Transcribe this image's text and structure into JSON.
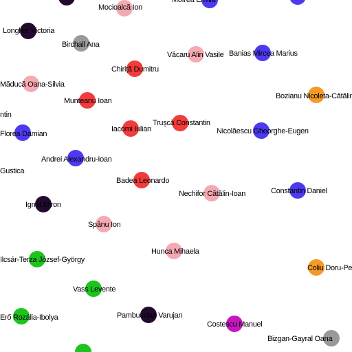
{
  "palette": {
    "dark_purple": "#220a2e",
    "gray": "#999999",
    "pink": "#f4aab2",
    "red": "#f23b3b",
    "blue": "#4d3af0",
    "orange": "#f59a28",
    "green": "#1ec41e",
    "magenta": "#c816c0"
  },
  "nodes": [
    {
      "label": "",
      "color": "dark_purple"
    },
    {
      "label": "Mocioalcă Ion",
      "color": "pink"
    },
    {
      "label": "Mofrea Emilia",
      "color": "blue"
    },
    {
      "label": "",
      "color": "blue"
    },
    {
      "label": "Longher Victoria",
      "color": "dark_purple"
    },
    {
      "label": "Birchall Ana",
      "color": "gray"
    },
    {
      "label": "Văcaru Alin Vasile",
      "color": "pink"
    },
    {
      "label": "Banias Mircea Marius",
      "color": "blue"
    },
    {
      "label": "Chiriță Dumitru",
      "color": "red"
    },
    {
      "label": "Măducă Oana-Silvia",
      "color": "pink"
    },
    {
      "label": "Bozianu Nicoleta-Cătălina",
      "color": "orange"
    },
    {
      "label": "Munteanu Ioan",
      "color": "red"
    },
    {
      "label": "ntin",
      "color": ""
    },
    {
      "label": "Iacomi Iulian",
      "color": "red"
    },
    {
      "label": "Trușcă Constantin",
      "color": "red"
    },
    {
      "label": "Florea Damian",
      "color": "blue"
    },
    {
      "label": "Nicolăescu Gheorghe-Eugen",
      "color": "blue"
    },
    {
      "label": "Andrei Alexandru-Ioan",
      "color": "blue"
    },
    {
      "label": "Gustica",
      "color": ""
    },
    {
      "label": "Badea Leonardo",
      "color": "red"
    },
    {
      "label": "Nechifor Cătălin-Ioan",
      "color": "pink"
    },
    {
      "label": "Constantin Daniel",
      "color": "blue"
    },
    {
      "label": "Ignat Miron",
      "color": "dark_purple"
    },
    {
      "label": "Spânu Ion",
      "color": "pink"
    },
    {
      "label": "Hunca Mihaela",
      "color": "pink"
    },
    {
      "label": "Ilcsár-Terza József-György",
      "color": "green"
    },
    {
      "label": "Coliu Doru-Petru",
      "color": "orange"
    },
    {
      "label": "Vass Levente",
      "color": "green"
    },
    {
      "label": "Erő Rozália-Ibolya",
      "color": "green"
    },
    {
      "label": "Pambuccian Varujan",
      "color": "dark_purple"
    },
    {
      "label": "Costescu Manuel",
      "color": "magenta"
    },
    {
      "label": "Bizgan-Gayral Oana",
      "color": "gray"
    },
    {
      "label": "",
      "color": "green"
    }
  ]
}
